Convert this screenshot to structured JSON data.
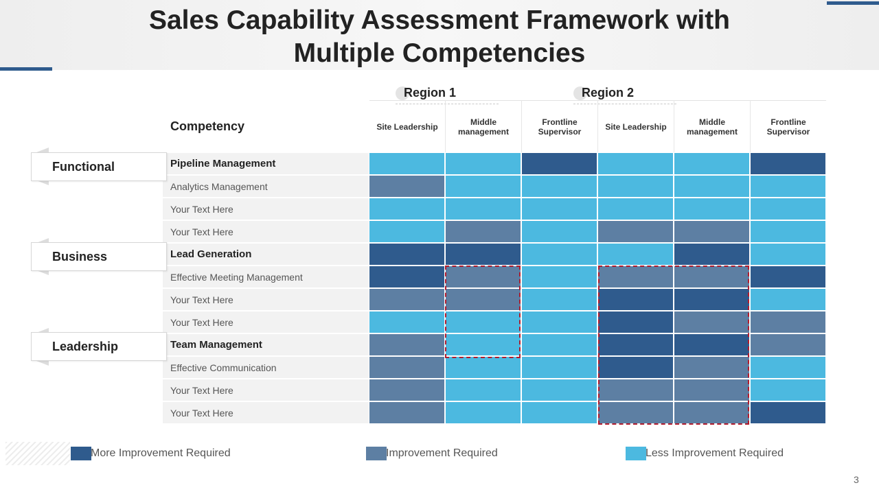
{
  "slide": {
    "title_line1": "Sales Capability Assessment Framework with",
    "title_line2": "Multiple Competencies",
    "page_number": "3"
  },
  "colors": {
    "accent": "#2f5b8d",
    "more": "#2f5b8d",
    "improve": "#5d7fa3",
    "less": "#4cb9e0"
  },
  "regions": [
    "Region 1",
    "Region 2"
  ],
  "columns": [
    "Site Leadership",
    "Middle management",
    "Frontline Supervisor",
    "Site Leadership",
    "Middle management",
    "Frontline Supervisor"
  ],
  "competency_header": "Competency",
  "categories": [
    "Functional",
    "Business",
    "Leadership"
  ],
  "rows": [
    {
      "label": "Pipeline Management",
      "bold": true,
      "levels": [
        "less",
        "less",
        "more",
        "less",
        "less",
        "more"
      ]
    },
    {
      "label": "Analytics Management",
      "bold": false,
      "levels": [
        "improve",
        "less",
        "less",
        "less",
        "less",
        "less"
      ]
    },
    {
      "label": "Your Text Here",
      "bold": false,
      "levels": [
        "less",
        "less",
        "less",
        "less",
        "less",
        "less"
      ]
    },
    {
      "label": "Your Text Here",
      "bold": false,
      "levels": [
        "less",
        "improve",
        "less",
        "improve",
        "improve",
        "less"
      ]
    },
    {
      "label": "Lead Generation",
      "bold": true,
      "levels": [
        "more",
        "more",
        "less",
        "less",
        "more",
        "less"
      ]
    },
    {
      "label": "Effective Meeting Management",
      "bold": false,
      "levels": [
        "more",
        "improve",
        "less",
        "improve",
        "improve",
        "more"
      ]
    },
    {
      "label": "Your Text Here",
      "bold": false,
      "levels": [
        "improve",
        "improve",
        "less",
        "more",
        "more",
        "less"
      ]
    },
    {
      "label": "Your Text Here",
      "bold": false,
      "levels": [
        "less",
        "less",
        "less",
        "more",
        "improve",
        "improve"
      ]
    },
    {
      "label": "Team Management",
      "bold": true,
      "levels": [
        "improve",
        "less",
        "less",
        "more",
        "more",
        "improve"
      ]
    },
    {
      "label": "Effective Communication",
      "bold": false,
      "levels": [
        "improve",
        "less",
        "less",
        "more",
        "improve",
        "less"
      ]
    },
    {
      "label": "Your Text Here",
      "bold": false,
      "levels": [
        "improve",
        "less",
        "less",
        "improve",
        "improve",
        "less"
      ]
    },
    {
      "label": "Your Text Here",
      "bold": false,
      "levels": [
        "improve",
        "less",
        "less",
        "improve",
        "improve",
        "more"
      ]
    }
  ],
  "legend": [
    {
      "key": "more",
      "label": "More Improvement  Required"
    },
    {
      "key": "improve",
      "label": "Improvement  Required"
    },
    {
      "key": "less",
      "label": "Less Improvement  Required"
    }
  ]
}
